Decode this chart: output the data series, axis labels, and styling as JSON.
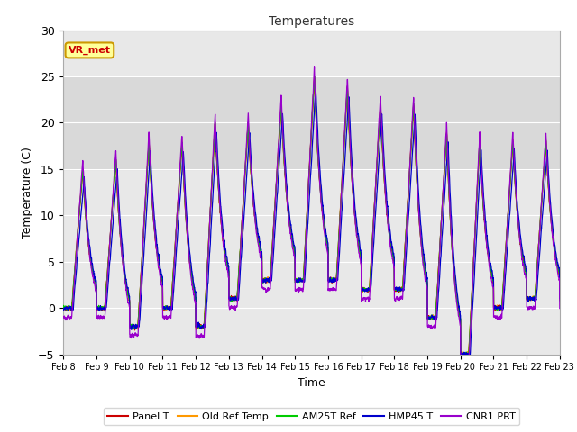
{
  "title": "Temperatures",
  "xlabel": "Time",
  "ylabel": "Temperature (C)",
  "ylim": [
    -5,
    30
  ],
  "xlim": [
    0,
    360
  ],
  "x_tick_labels": [
    "Feb 8",
    "Feb 9",
    "Feb 10",
    "Feb 11",
    "Feb 12",
    "Feb 13",
    "Feb 14",
    "Feb 15",
    "Feb 16",
    "Feb 17",
    "Feb 18",
    "Feb 19",
    "Feb 20",
    "Feb 21",
    "Feb 22",
    "Feb 23"
  ],
  "x_tick_positions": [
    0,
    24,
    48,
    72,
    96,
    120,
    144,
    168,
    192,
    216,
    240,
    264,
    288,
    312,
    336,
    360
  ],
  "series_colors": {
    "Panel T": "#cc0000",
    "Old Ref Temp": "#ff9900",
    "AM25T Ref": "#00cc00",
    "HMP45 T": "#0000cc",
    "CNR1 PRT": "#9900cc"
  },
  "annotation_text": "VR_met",
  "annotation_color": "#cc0000",
  "annotation_bg": "#ffff99",
  "shaded_region": [
    15,
    25
  ],
  "background_color": "#ffffff",
  "plot_bg": "#e8e8e8",
  "grid_color": "#ffffff",
  "day_mins": [
    0,
    0,
    -2,
    0,
    -2,
    1,
    3,
    3,
    3,
    2,
    2,
    -1,
    -5,
    0,
    1,
    1
  ],
  "day_maxs": [
    15,
    16,
    18,
    18,
    20,
    20,
    22,
    25,
    24,
    22,
    22,
    19,
    18,
    18,
    18,
    18
  ],
  "peak_hour": 14,
  "min_hour": 6
}
